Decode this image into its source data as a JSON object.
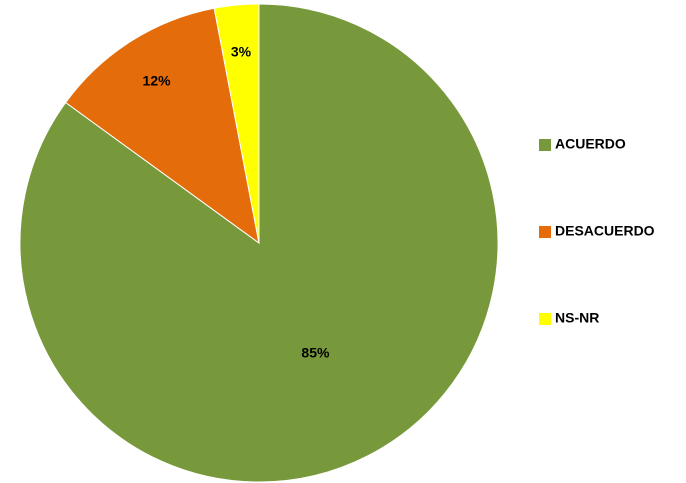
{
  "chart_data": {
    "type": "pie",
    "categories": [
      "ACUERDO",
      "DESACUERDO",
      "NS-NR"
    ],
    "values": [
      85,
      12,
      3
    ],
    "value_labels": [
      "85%",
      "12%",
      "3%"
    ],
    "colors": [
      "#77993b",
      "#e46c0a",
      "#ffff00"
    ],
    "legend": "right"
  }
}
